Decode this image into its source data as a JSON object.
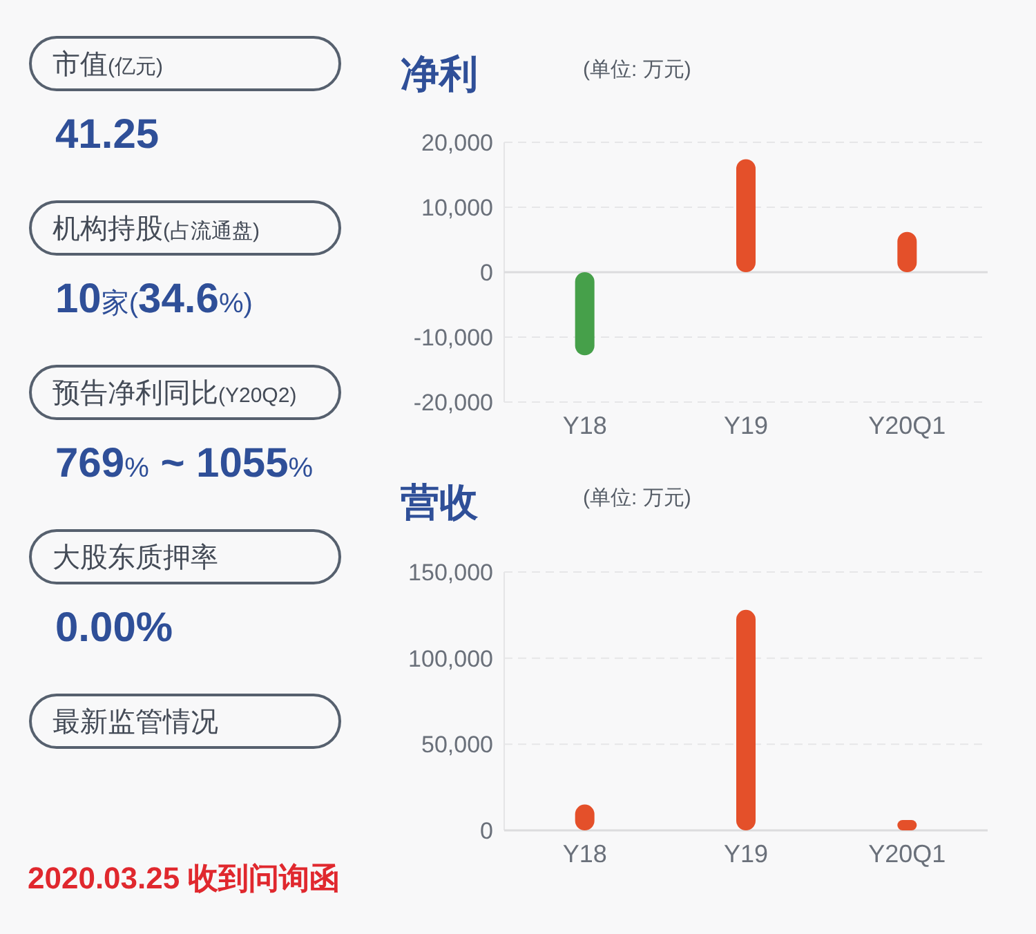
{
  "chart_data": [
    {
      "type": "other",
      "annotations": [
        "市值(亿元)",
        "41.25",
        "机构持股(占流通盘)",
        "10家(34.6%)",
        "预告净利同比(Y20Q2)",
        "769% ~ 1055%",
        "大股东质押率",
        "0.00%",
        "最新监管情况",
        "2020.03.25 收到问询函"
      ]
    },
    {
      "type": "bar",
      "title": "净利",
      "subtitle": "(单位: 万元)",
      "categories": [
        "Y18",
        "Y19",
        "Y20Q1"
      ],
      "values": [
        -12800,
        17400,
        6200
      ],
      "colors": [
        "#46a04a",
        "#e4502a",
        "#e4502a"
      ],
      "ylim": [
        -20000,
        20000
      ],
      "yticks": [
        {
          "value": -20000,
          "label": "-20,000"
        },
        {
          "value": -10000,
          "label": "-10,000"
        },
        0,
        {
          "value": 10000,
          "label": "10,000"
        },
        {
          "value": 20000,
          "label": "20,000"
        }
      ],
      "grid": "y"
    },
    {
      "type": "bar",
      "title": "营收",
      "subtitle": "(单位: 万元)",
      "categories": [
        "Y18",
        "Y19",
        "Y20Q1"
      ],
      "values": [
        15000,
        128000,
        6000
      ],
      "colors": [
        "#e4502a",
        "#e4502a",
        "#e4502a"
      ],
      "ylim": [
        0,
        150000
      ],
      "yticks": [
        0,
        {
          "value": 50000,
          "label": "50,000"
        },
        {
          "value": 100000,
          "label": "100,000"
        },
        {
          "value": 150000,
          "label": "150,000"
        }
      ],
      "grid": "y"
    }
  ]
}
